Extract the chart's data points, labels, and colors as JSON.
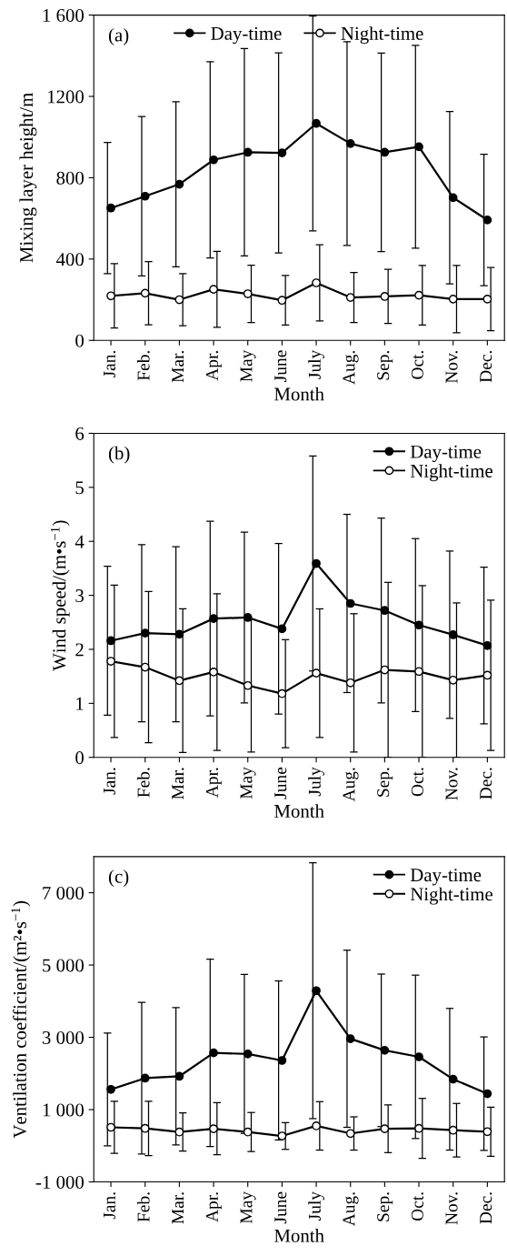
{
  "chart_data": [
    {
      "type": "line",
      "categories": [
        "Jan.",
        "Feb.",
        "Mar.",
        "Apr.",
        "May",
        "June",
        "July",
        "Aug.",
        "Sep.",
        "Oct.",
        "Nov.",
        "Dec."
      ],
      "xlabel": "Month",
      "ylabel": "Mixing layer height/m",
      "annotations": [
        "(a)"
      ],
      "ylim": [
        0,
        1600
      ],
      "yticks": [
        0,
        400,
        800,
        1200,
        {
          "value": 1600,
          "label": "1 600"
        }
      ],
      "legend": "top",
      "marker": "circle",
      "line_style": "solid",
      "grid": false,
      "series": [
        {
          "name": "Day-time",
          "color": "#000000",
          "values": [
            651,
            709,
            768,
            888,
            925,
            922,
            1067,
            968,
            925,
            952,
            702,
            592
          ],
          "errors": [
            323,
            392,
            406,
            483,
            510,
            492,
            528,
            501,
            488,
            499,
            424,
            323
          ]
        },
        {
          "name": "Night-time",
          "color": "#ffffff",
          "values": [
            219,
            232,
            200,
            251,
            229,
            197,
            283,
            211,
            216,
            222,
            203,
            203
          ],
          "errors": [
            158,
            155,
            128,
            187,
            141,
            122,
            187,
            123,
            133,
            147,
            166,
            155
          ]
        }
      ]
    },
    {
      "type": "line",
      "categories": [
        "Jan.",
        "Feb.",
        "Mar.",
        "Apr.",
        "May",
        "June",
        "July",
        "Aug.",
        "Sep.",
        "Oct.",
        "Nov.",
        "Dec."
      ],
      "xlabel": "Month",
      "ylabel": "Wind speed/(m•s$^{−1}$)",
      "annotations": [
        "(b)"
      ],
      "ylim": [
        0,
        6
      ],
      "yticks": [
        0,
        1,
        2,
        3,
        4,
        5,
        6
      ],
      "legend": "top right",
      "marker": "circle",
      "line_style": "solid",
      "grid": false,
      "series": [
        {
          "name": "Day-time",
          "color": "#000000",
          "values": [
            2.16,
            2.3,
            2.28,
            2.57,
            2.59,
            2.38,
            3.59,
            2.85,
            2.72,
            2.45,
            2.27,
            2.07
          ],
          "errors": [
            1.38,
            1.64,
            1.62,
            1.8,
            1.58,
            1.58,
            1.99,
            1.65,
            1.71,
            1.6,
            1.55,
            1.45
          ]
        },
        {
          "name": "Night-time",
          "color": "#ffffff",
          "values": [
            1.78,
            1.67,
            1.42,
            1.58,
            1.33,
            1.18,
            1.56,
            1.38,
            1.62,
            1.59,
            1.43,
            1.52
          ],
          "errors": [
            1.41,
            1.4,
            1.33,
            1.45,
            1.23,
            1.0,
            1.19,
            1.28,
            1.62,
            1.59,
            1.43,
            1.39
          ]
        }
      ]
    },
    {
      "type": "line",
      "categories": [
        "Jan.",
        "Feb.",
        "Mar.",
        "Apr.",
        "May",
        "June",
        "July",
        "Aug.",
        "Sep.",
        "Oct.",
        "Nov.",
        "Dec."
      ],
      "xlabel": "Month",
      "ylabel": "Ventilation coefficient/(m²•s$^{−1}$)",
      "annotations": [
        "(c)"
      ],
      "ylim": [
        -1000,
        8000
      ],
      "yticks": [
        {
          "value": -1000,
          "label": "-1 000"
        },
        {
          "value": 1000,
          "label": "1 000"
        },
        {
          "value": 3000,
          "label": "3 000"
        },
        {
          "value": 5000,
          "label": "5 000"
        },
        {
          "value": 7000,
          "label": "7 000"
        }
      ],
      "legend": "top right",
      "marker": "circle",
      "line_style": "solid",
      "grid": false,
      "series": [
        {
          "name": "Day-time",
          "color": "#000000",
          "values": [
            1560,
            1870,
            1920,
            2570,
            2540,
            2360,
            4290,
            2960,
            2640,
            2460,
            1840,
            1440
          ],
          "errors": [
            1560,
            2100,
            1900,
            2590,
            2200,
            2200,
            3540,
            2450,
            2110,
            2260,
            1960,
            1570
          ]
        },
        {
          "name": "Night-time",
          "color": "#ffffff",
          "values": [
            510,
            480,
            380,
            470,
            380,
            270,
            550,
            340,
            470,
            480,
            430,
            390
          ],
          "errors": [
            720,
            750,
            530,
            720,
            540,
            370,
            670,
            460,
            660,
            830,
            740,
            680
          ]
        }
      ]
    }
  ]
}
